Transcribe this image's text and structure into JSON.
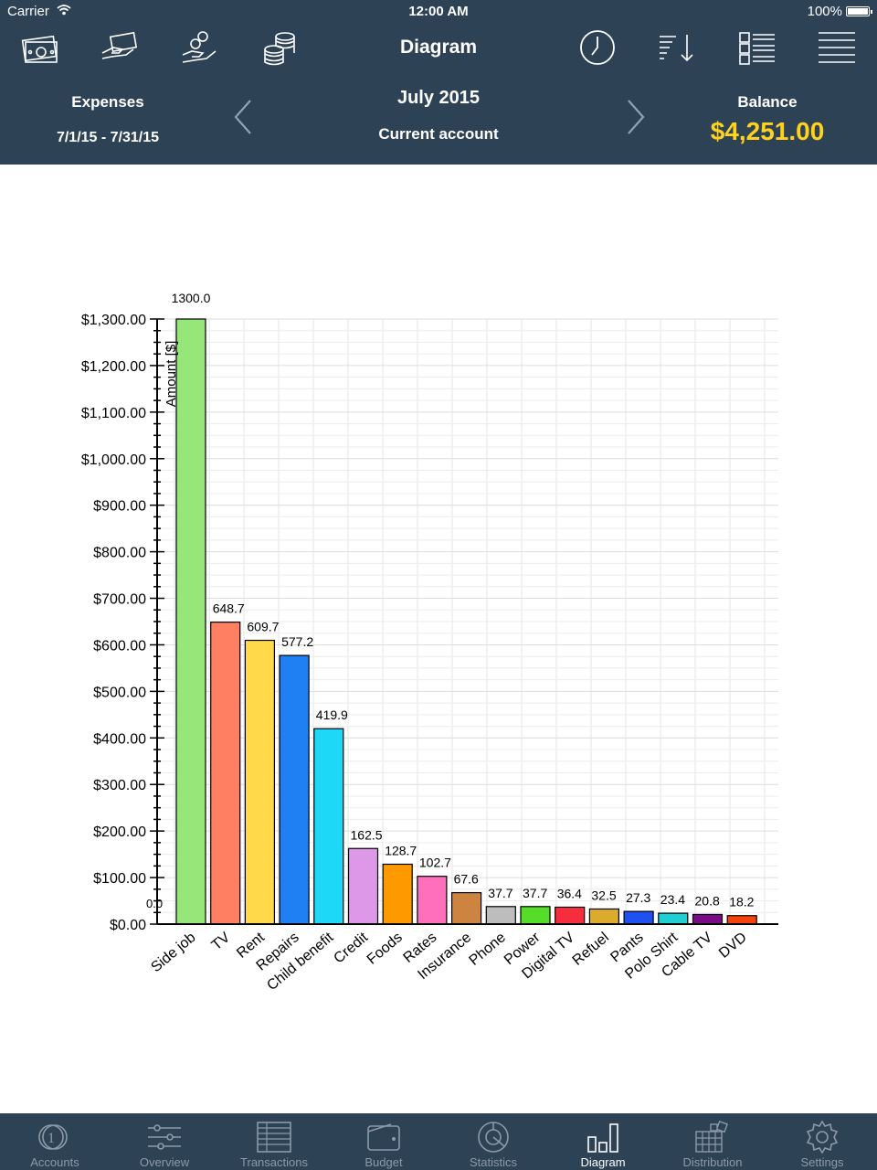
{
  "status": {
    "carrier": "Carrier",
    "time": "12:00 AM",
    "battery": "100%"
  },
  "toolbar": {
    "title": "Diagram",
    "left_icons": [
      "cash-icon",
      "card-payment-icon",
      "hand-coins-icon",
      "coin-stack-icon"
    ],
    "right_icons": [
      "clock-icon",
      "sort-descending-icon",
      "report-list-icon",
      "menu-icon"
    ]
  },
  "subheader": {
    "left_label": "Expenses",
    "date_range": "7/1/15 - 7/31/15",
    "month": "July 2015",
    "account": "Current account",
    "balance_label": "Balance",
    "balance_value": "$4,251.00",
    "balance_color": "#ffd21f"
  },
  "chart_data": {
    "type": "bar",
    "ylabel": "Amount [$]",
    "ylim": [
      0,
      1300
    ],
    "yticks": [
      "$0.00",
      "$100.00",
      "$200.00",
      "$300.00",
      "$400.00",
      "$500.00",
      "$600.00",
      "$700.00",
      "$800.00",
      "$900.00",
      "$1,000.00",
      "$1,100.00",
      "$1,200.00",
      "$1,300.00"
    ],
    "categories": [
      "Side job",
      "TV",
      "Rent",
      "Repairs",
      "Child benefit",
      "Credit",
      "Foods",
      "Rates",
      "Insurance",
      "Phone",
      "Power",
      "Digital TV",
      "Refuel",
      "Pants",
      "Polo Shirt",
      "Cable TV",
      "DVD"
    ],
    "values": [
      1300.0,
      648.7,
      609.7,
      577.2,
      419.9,
      162.5,
      128.7,
      102.7,
      67.6,
      37.7,
      37.7,
      36.4,
      32.5,
      27.3,
      23.4,
      20.8,
      18.2
    ],
    "value_labels": [
      "1300.0",
      "648.7",
      "609.7",
      "577.2",
      "419.9",
      "162.5",
      "128.7",
      "102.7",
      "67.6",
      "37.7",
      "37.7",
      "36.4",
      "32.5",
      "27.3",
      "23.4",
      "20.8",
      "18.2"
    ],
    "colors": [
      "#96e67a",
      "#ff7f62",
      "#ffd94a",
      "#1f7ff5",
      "#1ed8f8",
      "#dd99e8",
      "#ff9900",
      "#ff6fbc",
      "#cc8440",
      "#bdbdbd",
      "#55dd2a",
      "#f52d3c",
      "#dcaa2c",
      "#1f50f0",
      "#1fcfd1",
      "#7a0b87",
      "#f5420f"
    ],
    "zero_label": "0.0",
    "grid": true
  },
  "tabs": [
    {
      "label": "Accounts",
      "icon": "accounts-coin-icon"
    },
    {
      "label": "Overview",
      "icon": "sliders-icon"
    },
    {
      "label": "Transactions",
      "icon": "table-icon"
    },
    {
      "label": "Budget",
      "icon": "wallet-icon"
    },
    {
      "label": "Statistics",
      "icon": "pie-chart-icon"
    },
    {
      "label": "Diagram",
      "icon": "bar-chart-icon",
      "active": true
    },
    {
      "label": "Distribution",
      "icon": "distribution-icon"
    },
    {
      "label": "Settings",
      "icon": "gear-icon"
    }
  ]
}
